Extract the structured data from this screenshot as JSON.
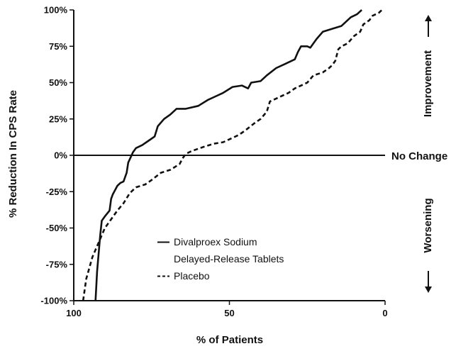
{
  "chart_data": {
    "type": "line",
    "xlabel": "% of Patients",
    "ylabel": "% Reduction In CPS Rate",
    "xlim": [
      100,
      0
    ],
    "ylim": [
      -100,
      100
    ],
    "x_ticks": [
      {
        "value": 100,
        "label": "100"
      },
      {
        "value": 50,
        "label": "50"
      },
      {
        "value": 0,
        "label": "0"
      }
    ],
    "y_ticks": [
      {
        "value": 100,
        "label": "100%"
      },
      {
        "value": 75,
        "label": "75%"
      },
      {
        "value": 50,
        "label": "50%"
      },
      {
        "value": 25,
        "label": "25%"
      },
      {
        "value": 0,
        "label": "0%"
      },
      {
        "value": -25,
        "label": "-25%"
      },
      {
        "value": -50,
        "label": "-50%"
      },
      {
        "value": -75,
        "label": "-75%"
      },
      {
        "value": -100,
        "label": "-100%"
      }
    ],
    "reference_line": {
      "y": 0,
      "label": "No Change"
    },
    "side_labels": {
      "top": "Improvement",
      "bottom": "Worsening"
    },
    "grid": false,
    "legend_position": "bottom-center",
    "series": [
      {
        "name": "Divalproex Sodium Delayed-Release Tablets",
        "name_lines": [
          "Divalproex Sodium",
          "Delayed-Release Tablets"
        ],
        "style": "solid",
        "color": "#111111",
        "points": [
          [
            93,
            -100
          ],
          [
            92.5,
            -80
          ],
          [
            91.5,
            -55
          ],
          [
            91,
            -45
          ],
          [
            90,
            -42
          ],
          [
            88.5,
            -38
          ],
          [
            88,
            -30
          ],
          [
            87.5,
            -27
          ],
          [
            86,
            -21
          ],
          [
            85,
            -19
          ],
          [
            84,
            -18
          ],
          [
            83,
            -12
          ],
          [
            82.5,
            -5
          ],
          [
            81,
            2
          ],
          [
            80,
            5
          ],
          [
            78,
            7
          ],
          [
            76,
            10
          ],
          [
            74,
            13
          ],
          [
            73,
            20
          ],
          [
            71,
            25
          ],
          [
            69,
            28
          ],
          [
            67,
            32
          ],
          [
            64,
            32
          ],
          [
            60,
            34
          ],
          [
            57,
            38
          ],
          [
            55,
            40
          ],
          [
            52,
            43
          ],
          [
            49,
            47
          ],
          [
            46,
            48
          ],
          [
            44,
            46
          ],
          [
            43,
            50
          ],
          [
            40,
            51
          ],
          [
            38,
            55
          ],
          [
            35,
            60
          ],
          [
            32,
            63
          ],
          [
            29,
            66
          ],
          [
            28,
            71
          ],
          [
            27,
            75
          ],
          [
            25,
            75
          ],
          [
            24,
            74
          ],
          [
            22,
            80
          ],
          [
            20,
            85
          ],
          [
            17,
            87
          ],
          [
            14,
            89
          ],
          [
            11,
            95
          ],
          [
            9,
            97
          ],
          [
            7.5,
            100
          ]
        ]
      },
      {
        "name": "Placebo",
        "name_lines": [
          "Placebo"
        ],
        "style": "dashed",
        "color": "#111111",
        "points": [
          [
            97,
            -100
          ],
          [
            96,
            -85
          ],
          [
            94,
            -70
          ],
          [
            92,
            -60
          ],
          [
            90,
            -50
          ],
          [
            88,
            -44
          ],
          [
            86,
            -38
          ],
          [
            84,
            -33
          ],
          [
            82,
            -26
          ],
          [
            80,
            -22
          ],
          [
            77,
            -20
          ],
          [
            75,
            -17
          ],
          [
            72,
            -12
          ],
          [
            69,
            -10
          ],
          [
            66,
            -6
          ],
          [
            65,
            -2
          ],
          [
            64,
            1
          ],
          [
            62,
            3
          ],
          [
            58,
            6
          ],
          [
            55,
            8
          ],
          [
            52,
            9
          ],
          [
            49,
            12
          ],
          [
            47,
            14
          ],
          [
            45,
            17
          ],
          [
            42,
            22
          ],
          [
            40,
            25
          ],
          [
            38,
            30
          ],
          [
            37,
            37
          ],
          [
            34,
            40
          ],
          [
            31,
            43
          ],
          [
            29,
            46
          ],
          [
            25,
            50
          ],
          [
            23,
            55
          ],
          [
            20,
            57
          ],
          [
            18,
            60
          ],
          [
            17,
            62
          ],
          [
            16,
            65
          ],
          [
            15,
            73
          ],
          [
            14,
            75
          ],
          [
            12,
            77
          ],
          [
            10,
            82
          ],
          [
            8,
            85
          ],
          [
            7,
            90
          ],
          [
            5,
            93
          ],
          [
            4,
            96
          ],
          [
            2,
            98
          ],
          [
            1,
            100
          ]
        ]
      }
    ]
  }
}
